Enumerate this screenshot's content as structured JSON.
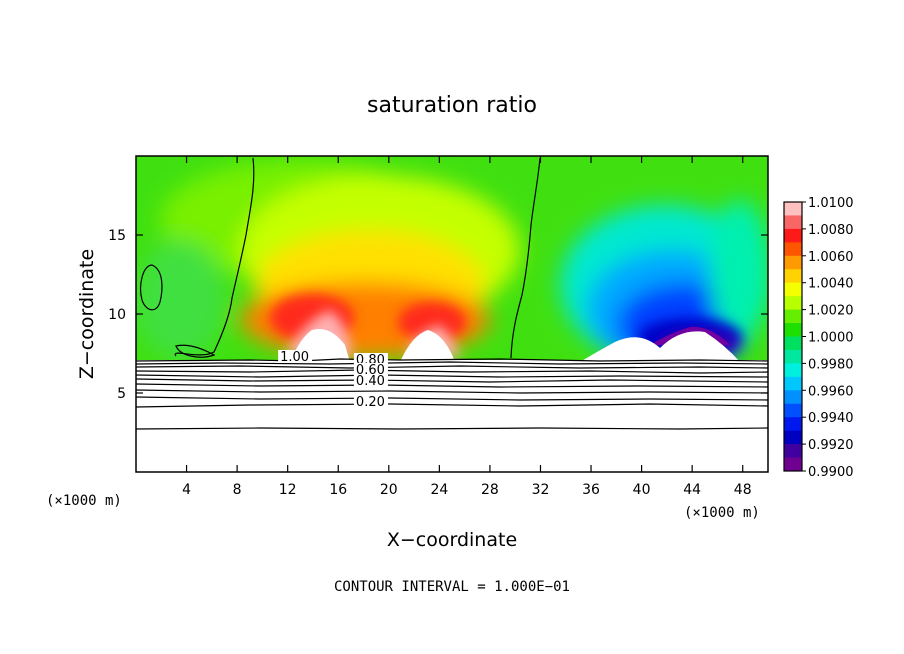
{
  "chart_data": {
    "type": "heatmap",
    "title": "saturation ratio",
    "xlabel": "X−coordinate",
    "ylabel": "Z−coordinate",
    "x_unit": "(×1000 m)",
    "z_unit": "(×1000 m)",
    "xlim": [
      0,
      50
    ],
    "ylim": [
      0,
      20
    ],
    "x_ticks": [
      4,
      8,
      12,
      16,
      20,
      24,
      28,
      32,
      36,
      40,
      44,
      48
    ],
    "y_ticks": [
      5,
      10,
      15
    ],
    "colorbar": {
      "levels": [
        "1.0100",
        "1.0080",
        "1.0060",
        "1.0040",
        "1.0020",
        "1.0000",
        "0.9980",
        "0.9960",
        "0.9940",
        "0.9920",
        "0.9900"
      ],
      "colors": [
        "#ffc0c0",
        "#f86666",
        "#ff1a1a",
        "#ff5500",
        "#ff9a00",
        "#ffd200",
        "#f4ff00",
        "#b8ff00",
        "#66ee00",
        "#1ee000",
        "#00e060",
        "#00e8a0",
        "#00f0e0",
        "#00c8ff",
        "#0090ff",
        "#0050ff",
        "#0018f0",
        "#0000c0",
        "#4000a0",
        "#700090"
      ]
    },
    "contour_lines": [
      {
        "label": "1.00",
        "label_x": 11.4
      },
      {
        "label": "0.80",
        "label_x": 17.4
      },
      {
        "label": "0.60",
        "label_x": 17.4
      },
      {
        "label": "0.40",
        "label_x": 17.4
      },
      {
        "label": "0.20",
        "label_x": 17.4
      }
    ],
    "contour_interval": "CONTOUR INTERVAL = 1.000E−01"
  }
}
